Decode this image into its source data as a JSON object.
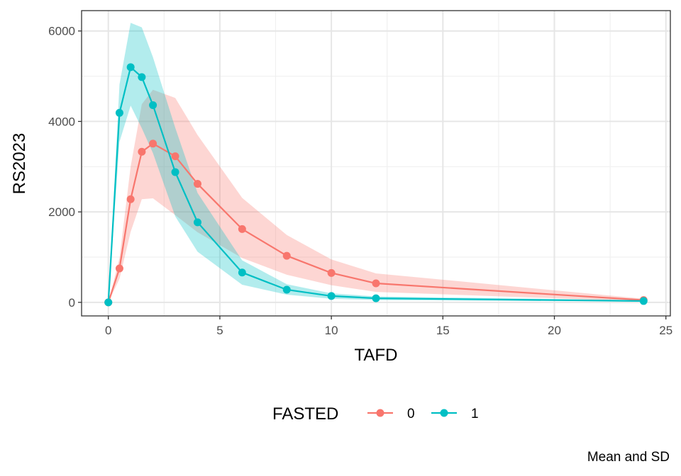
{
  "chart_data": {
    "type": "line",
    "xlabel": "TAFD",
    "ylabel": "RS2023",
    "caption": "Mean and SD",
    "xlim": [
      -1.2,
      25.2
    ],
    "ylim": [
      -300,
      6450
    ],
    "x_ticks": [
      0,
      5,
      10,
      15,
      20,
      25
    ],
    "x_tick_labels": [
      "0",
      "5",
      "10",
      "15",
      "20",
      "25"
    ],
    "y_ticks": [
      0,
      2000,
      4000,
      6000
    ],
    "y_tick_labels": [
      "0",
      "2000",
      "4000",
      "6000"
    ],
    "grid": true,
    "legend": {
      "title": "FASTED",
      "position": "bottom"
    },
    "series": [
      {
        "name": "0",
        "color": "#F8766D",
        "x": [
          0,
          0.5,
          1,
          1.5,
          2,
          3,
          4,
          6,
          8,
          10,
          12,
          24
        ],
        "mean": [
          0,
          750,
          2280,
          3330,
          3510,
          3230,
          2620,
          1620,
          1030,
          650,
          420,
          50
        ],
        "lower": [
          0,
          520,
          1560,
          2280,
          2300,
          1930,
          1550,
          980,
          610,
          380,
          230,
          20
        ],
        "upper": [
          0,
          980,
          3000,
          4380,
          4700,
          4520,
          3700,
          2310,
          1490,
          950,
          640,
          80
        ]
      },
      {
        "name": "1",
        "color": "#00BFC4",
        "x": [
          0,
          0.5,
          1,
          1.5,
          2,
          3,
          4,
          6,
          8,
          10,
          12,
          24
        ],
        "mean": [
          0,
          4190,
          5200,
          4980,
          4360,
          2880,
          1770,
          660,
          280,
          140,
          90,
          30
        ],
        "lower": [
          0,
          3550,
          4350,
          3850,
          3300,
          1900,
          1120,
          390,
          170,
          80,
          50,
          15
        ],
        "upper": [
          0,
          4820,
          6180,
          6080,
          5420,
          3860,
          2420,
          930,
          400,
          200,
          130,
          45
        ]
      }
    ]
  }
}
